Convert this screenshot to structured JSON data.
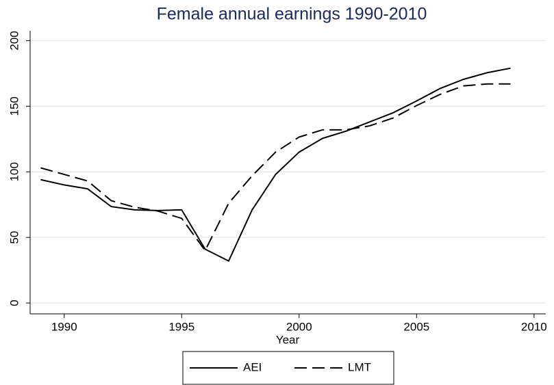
{
  "chart_data": {
    "type": "line",
    "title": "Female annual earnings 1990-2010",
    "x_label": "Year",
    "x": [
      1989,
      1990,
      1991,
      1992,
      1993,
      1994,
      1995,
      1996,
      1997,
      1998,
      1999,
      2000,
      2001,
      2002,
      2003,
      2004,
      2005,
      2006,
      2007,
      2008,
      2009
    ],
    "series": [
      {
        "name": "AEI",
        "color": "#000000",
        "line_style": "solid",
        "values": [
          94,
          90,
          87,
          73.5,
          71,
          70.5,
          71,
          41,
          32,
          71,
          98,
          115,
          125.5,
          131,
          138,
          145,
          154,
          163.5,
          170.5,
          175.5,
          179
        ]
      },
      {
        "name": "LMT",
        "color": "#000000",
        "line_style": "dashed",
        "values": [
          103,
          98,
          93,
          78,
          73,
          70,
          64.5,
          40,
          76,
          97,
          115,
          126.5,
          132,
          132,
          135,
          141,
          150.5,
          159,
          165.5,
          167,
          167
        ]
      }
    ],
    "xlim": [
      1988.55,
      2010.5
    ],
    "xticks": [
      1990,
      1995,
      2000,
      2005,
      2010
    ],
    "ylim": [
      -8.3,
      207.5
    ],
    "yticks": [
      0,
      50,
      100,
      150,
      200
    ],
    "grid": true
  }
}
